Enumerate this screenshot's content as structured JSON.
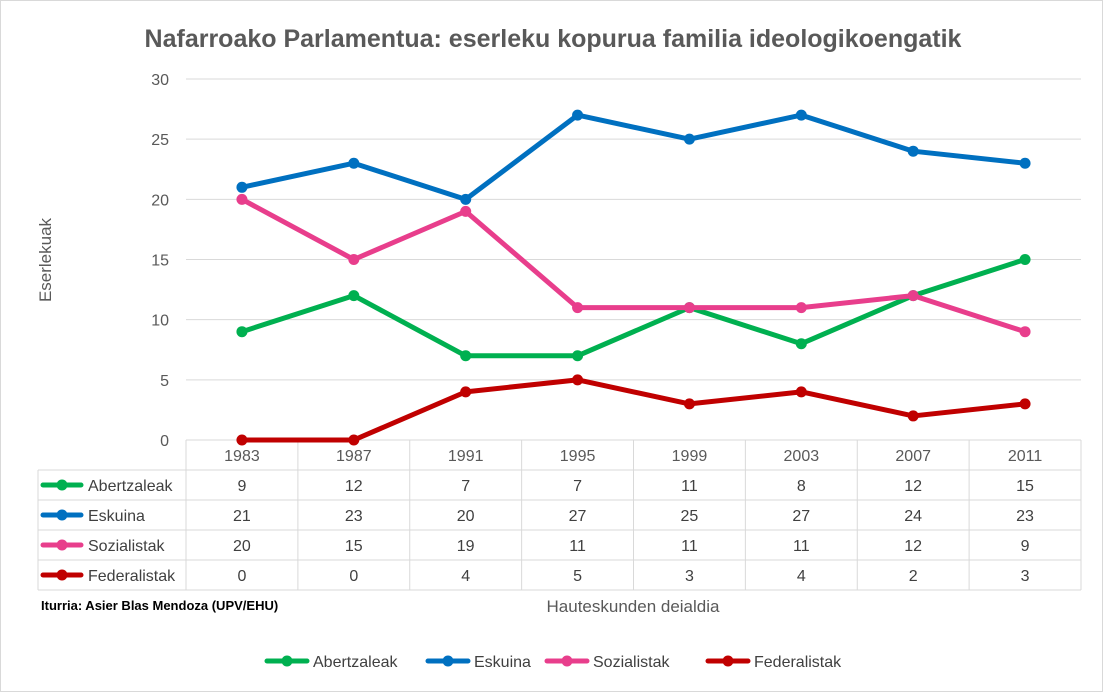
{
  "chart_data": {
    "type": "line",
    "title": "Nafarroako Parlamentua: eserleku kopurua familia ideologikoengatik",
    "xlabel": "Hauteskunden deialdia",
    "ylabel": "Eserlekuak",
    "ylim": [
      0,
      30
    ],
    "yticks": [
      0,
      5,
      10,
      15,
      20,
      25,
      30
    ],
    "categories": [
      "1983",
      "1987",
      "1991",
      "1995",
      "1999",
      "2003",
      "2007",
      "2011"
    ],
    "grid": true,
    "data_table": true,
    "legend_position": "bottom",
    "series": [
      {
        "name": "Abertzaleak",
        "color": "#00b050",
        "values": [
          9,
          12,
          7,
          7,
          11,
          8,
          12,
          15
        ]
      },
      {
        "name": "Eskuina",
        "color": "#0070c0",
        "values": [
          21,
          23,
          20,
          27,
          25,
          27,
          24,
          23
        ]
      },
      {
        "name": "Sozialistak",
        "color": "#e83e8c",
        "values": [
          20,
          15,
          19,
          11,
          11,
          11,
          12,
          9
        ]
      },
      {
        "name": "Federalistak",
        "color": "#c00000",
        "values": [
          0,
          0,
          4,
          5,
          3,
          4,
          2,
          3
        ]
      }
    ],
    "source_note": "Iturria: Asier Blas Mendoza (UPV/EHU)"
  }
}
